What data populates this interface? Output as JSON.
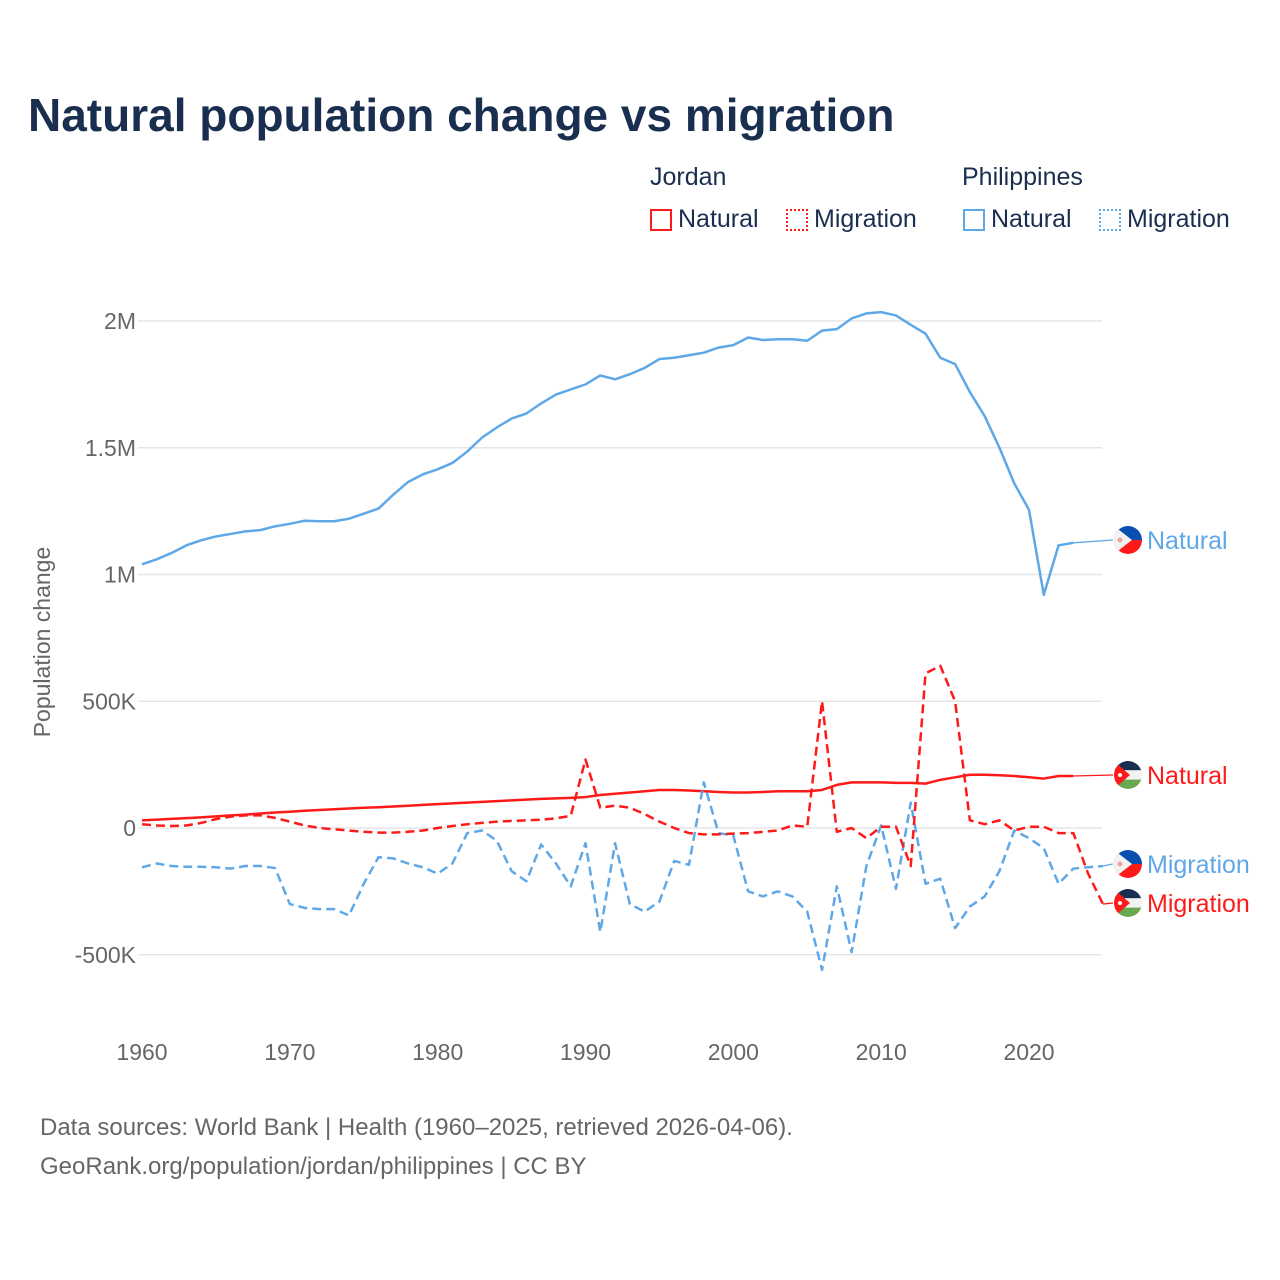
{
  "chart_data": {
    "type": "line",
    "title": "Natural population change vs migration",
    "xlabel": "",
    "ylabel": "Population change",
    "xlim": [
      1960,
      2025
    ],
    "ylim": [
      -600000,
      2100000
    ],
    "x_ticks": [
      1960,
      1970,
      1980,
      1990,
      2000,
      2010,
      2020
    ],
    "x_tick_labels": [
      "1960",
      "1970",
      "1980",
      "1990",
      "2000",
      "2010",
      "2020"
    ],
    "y_ticks": [
      -500000,
      0,
      500000,
      1000000,
      1500000,
      2000000
    ],
    "y_tick_labels": [
      "-500K",
      "0",
      "500K",
      "1M",
      "1.5M",
      "2M"
    ],
    "grid": true,
    "legend_placement": "top-right",
    "legend_groups": [
      {
        "name": "Jordan",
        "items": [
          "Natural",
          "Migration"
        ]
      },
      {
        "name": "Philippines",
        "items": [
          "Natural",
          "Migration"
        ]
      }
    ],
    "series": [
      {
        "name": "Philippines Natural",
        "country": "Philippines",
        "kind": "Natural",
        "end_label": "Natural",
        "color": "#5fa8e8",
        "dash": false,
        "start": 1960,
        "values": [
          1040,
          1060,
          1085,
          1115,
          1135,
          1150,
          1160,
          1170,
          1175,
          1190,
          1200,
          1212,
          1210,
          1210,
          1220,
          1240,
          1260,
          1315,
          1365,
          1395,
          1415,
          1440,
          1485,
          1540,
          1580,
          1615,
          1635,
          1675,
          1710,
          1730,
          1750,
          1785,
          1770,
          1790,
          1815,
          1850,
          1855,
          1865,
          1875,
          1895,
          1905,
          1935,
          1925,
          1928,
          1928,
          1922,
          1962,
          1968,
          2010,
          2030,
          2035,
          2022,
          1985,
          1950,
          1855,
          1830,
          1720,
          1625,
          1500,
          1360,
          1255,
          920,
          1115,
          1125
        ]
      },
      {
        "name": "Jordan Natural",
        "country": "Jordan",
        "kind": "Natural",
        "end_label": "Natural",
        "color": "#ff1a1a",
        "dash": false,
        "start": 1960,
        "values": [
          30,
          33,
          36,
          39,
          42,
          46,
          50,
          53,
          57,
          61,
          64,
          68,
          71,
          74,
          77,
          80,
          82,
          85,
          88,
          91,
          94,
          97,
          100,
          103,
          106,
          109,
          112,
          115,
          117,
          119,
          122,
          130,
          135,
          140,
          145,
          150,
          150,
          148,
          145,
          142,
          140,
          140,
          142,
          145,
          145,
          145,
          150,
          170,
          180,
          180,
          180,
          178,
          178,
          175,
          190,
          200,
          210,
          210,
          208,
          205,
          200,
          195,
          205,
          205
        ]
      },
      {
        "name": "Philippines Migration",
        "country": "Philippines",
        "kind": "Migration",
        "end_label": "Migration",
        "color": "#5fa8e8",
        "dash": true,
        "start": 1960,
        "values": [
          -155,
          -140,
          -150,
          -153,
          -153,
          -155,
          -160,
          -150,
          -150,
          -158,
          -300,
          -315,
          -320,
          -320,
          -345,
          -220,
          -115,
          -120,
          -140,
          -155,
          -180,
          -140,
          -20,
          -10,
          -50,
          -170,
          -210,
          -65,
          -140,
          -230,
          -60,
          -410,
          -60,
          -300,
          -330,
          -290,
          -130,
          -145,
          180,
          -20,
          -30,
          -250,
          -270,
          -250,
          -270,
          -330,
          -560,
          -230,
          -490,
          -150,
          10,
          -240,
          100,
          -220,
          -200,
          -395,
          -310,
          -270,
          -170,
          -10,
          -40,
          -80,
          -220,
          -160,
          -155,
          -150
        ]
      },
      {
        "name": "Jordan Migration",
        "country": "Jordan",
        "kind": "Migration",
        "end_label": "Migration",
        "color": "#ff1a1a",
        "dash": true,
        "start": 1960,
        "values": [
          15,
          10,
          8,
          10,
          20,
          35,
          45,
          50,
          50,
          40,
          25,
          10,
          0,
          -5,
          -10,
          -15,
          -18,
          -18,
          -15,
          -10,
          0,
          8,
          15,
          20,
          25,
          28,
          30,
          33,
          38,
          48,
          270,
          80,
          88,
          80,
          55,
          25,
          0,
          -20,
          -25,
          -25,
          -22,
          -20,
          -15,
          -10,
          10,
          5,
          500,
          -15,
          0,
          -40,
          5,
          5,
          -150,
          610,
          640,
          500,
          30,
          15,
          30,
          -10,
          5,
          5,
          -20,
          -20,
          -180,
          -300
        ]
      }
    ],
    "units": "thousands of people"
  },
  "colors": {
    "jordan": "#ff1a1a",
    "philippines": "#5fa8e8",
    "title": "#1a2e4f"
  },
  "legend": {
    "jordan": {
      "title": "Jordan",
      "natural": "Natural",
      "migration": "Migration"
    },
    "philippines": {
      "title": "Philippines",
      "natural": "Natural",
      "migration": "Migration"
    }
  },
  "source": {
    "line1": "Data sources: World Bank | Health (1960–2025, retrieved 2026-04-06).",
    "line2": "GeoRank.org/population/jordan/philippines | CC BY"
  }
}
